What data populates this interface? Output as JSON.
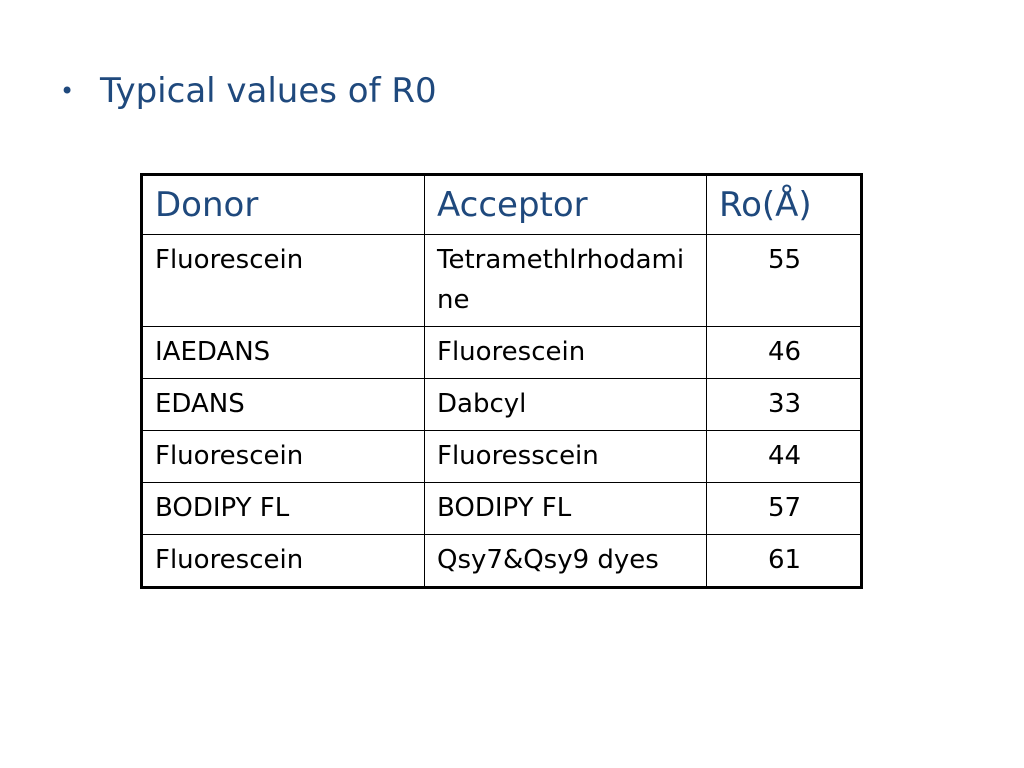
{
  "slide": {
    "bullet": "•",
    "title": "Typical values of R0"
  },
  "table": {
    "headers": [
      "Donor",
      "Acceptor",
      "Ro(Å)"
    ],
    "rows": [
      {
        "donor": "Fluorescein",
        "acceptor": "Tetramethlrhodamine",
        "ro": "55"
      },
      {
        "donor": "IAEDANS",
        "acceptor": "Fluorescein",
        "ro": "46"
      },
      {
        "donor": "EDANS",
        "acceptor": "Dabcyl",
        "ro": "33"
      },
      {
        "donor": "Fluorescein",
        "acceptor": "Fluoresscein",
        "ro": "44"
      },
      {
        "donor": "BODIPY FL",
        "acceptor": "BODIPY FL",
        "ro": "57"
      },
      {
        "donor": "Fluorescein",
        "acceptor": "Qsy7&Qsy9 dyes",
        "ro": "61"
      }
    ]
  },
  "colors": {
    "heading_text": "#1f497d",
    "body_text": "#000000",
    "border": "#000000",
    "background": "#ffffff"
  }
}
